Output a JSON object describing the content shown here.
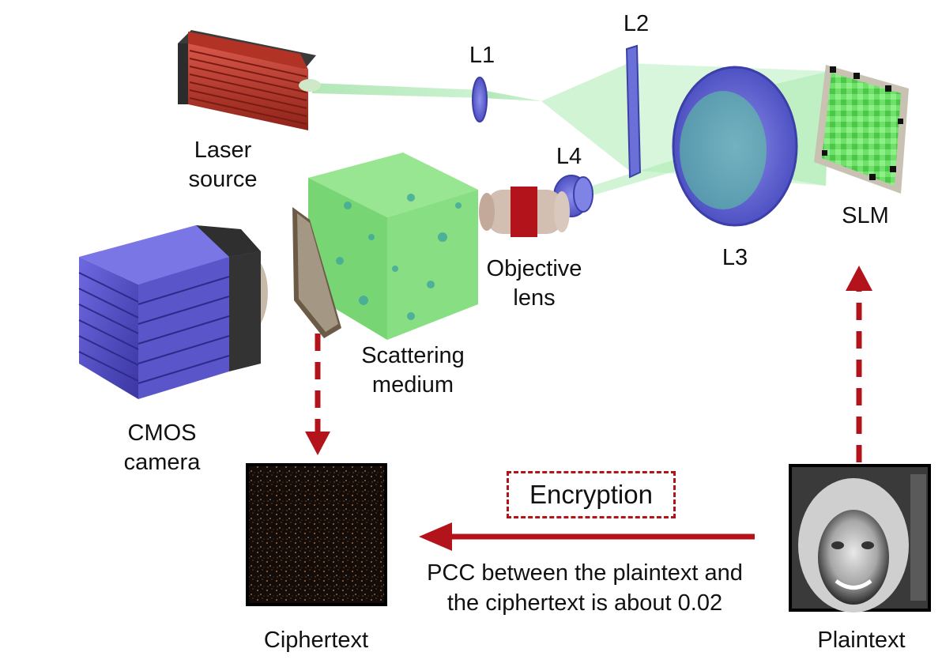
{
  "labels": {
    "laser_l1": "Laser",
    "laser_l2": "source",
    "l1": "L1",
    "l2": "L2",
    "l3": "L3",
    "l4": "L4",
    "slm": "SLM",
    "objective_l1": "Objective",
    "objective_l2": "lens",
    "scattering_l1": "Scattering",
    "scattering_l2": "medium",
    "cmos_l1": "CMOS",
    "cmos_l2": "camera",
    "ciphertext": "Ciphertext",
    "plaintext": "Plaintext",
    "encryption": "Encryption",
    "pcc_l1": "PCC between the plaintext and",
    "pcc_l2": "the ciphertext is about 0.02"
  },
  "colors": {
    "beam": "#9fe0a5",
    "lens": "#6b6fd8",
    "laser_body": "#c0392b",
    "camera_body": "#5a55c9",
    "medium": "#6fdc6a",
    "arrow": "#b3141b"
  }
}
